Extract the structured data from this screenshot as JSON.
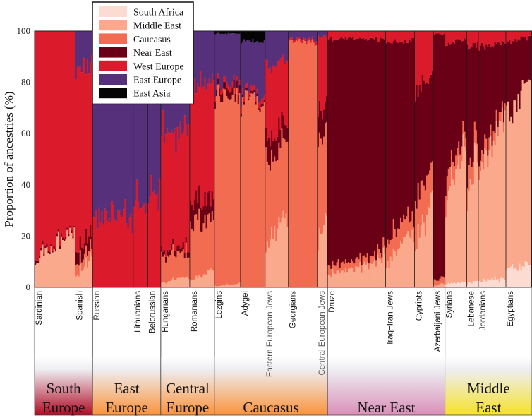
{
  "chart_data": {
    "type": "bar",
    "subtype": "stacked-admixture",
    "title": "",
    "xlabel": "",
    "ylabel": "Proportion of ancestries (%)",
    "ylim": [
      0,
      100
    ],
    "yticks": [
      0,
      20,
      40,
      60,
      80,
      100
    ],
    "grid": false,
    "legend_position": "top-left",
    "components": [
      {
        "name": "South Africa",
        "color": "#fcdcd2"
      },
      {
        "name": "Middle East",
        "color": "#fba98c"
      },
      {
        "name": "Caucasus",
        "color": "#f26c52"
      },
      {
        "name": "Near East",
        "color": "#6a0016"
      },
      {
        "name": "West Europe",
        "color": "#db1b2c"
      },
      {
        "name": "East Europe",
        "color": "#56307a"
      },
      {
        "name": "East Asia",
        "color": "#050505"
      }
    ],
    "populations": [
      {
        "name": "Sardinian",
        "region": "South Europe",
        "n": 28,
        "mean": {
          "South Africa": 0,
          "Middle East": 17,
          "Caucasus": 0,
          "Near East": 1,
          "West Europe": 82,
          "East Europe": 0,
          "East Asia": 0
        }
      },
      {
        "name": "Spanish",
        "region": "South Europe",
        "n": 12,
        "mean": {
          "South Africa": 0,
          "Middle East": 8,
          "Caucasus": 4,
          "Near East": 5,
          "West Europe": 70,
          "East Europe": 13,
          "East Asia": 0
        }
      },
      {
        "name": "Russian",
        "region": "East Europe",
        "n": 28,
        "mean": {
          "South Africa": 0,
          "Middle East": 0,
          "Caucasus": 0,
          "Near East": 0,
          "West Europe": 27,
          "East Europe": 73,
          "East Asia": 0
        }
      },
      {
        "name": "Lithuanians",
        "region": "East Europe",
        "n": 10,
        "mean": {
          "South Africa": 0,
          "Middle East": 0,
          "Caucasus": 0,
          "Near East": 0,
          "West Europe": 32,
          "East Europe": 68,
          "East Asia": 0
        }
      },
      {
        "name": "Belorussian",
        "region": "East Europe",
        "n": 9,
        "mean": {
          "South Africa": 0,
          "Middle East": 0,
          "Caucasus": 0,
          "Near East": 0,
          "West Europe": 38,
          "East Europe": 62,
          "East Asia": 0
        }
      },
      {
        "name": "Hungarians",
        "region": "Central Europe",
        "n": 20,
        "mean": {
          "South Africa": 0,
          "Middle East": 3,
          "Caucasus": 10,
          "Near East": 2,
          "West Europe": 46,
          "East Europe": 39,
          "East Asia": 0
        }
      },
      {
        "name": "Romanians",
        "region": "Central Europe",
        "n": 17,
        "mean": {
          "South Africa": 0,
          "Middle East": 5,
          "Caucasus": 22,
          "Near East": 8,
          "West Europe": 45,
          "East Europe": 20,
          "East Asia": 0
        }
      },
      {
        "name": "Lezgins",
        "region": "Caucasus",
        "n": 18,
        "mean": {
          "South Africa": 0,
          "Middle East": 1,
          "Caucasus": 74,
          "Near East": 3,
          "West Europe": 2,
          "East Europe": 19,
          "East Asia": 1
        }
      },
      {
        "name": "Adygei",
        "region": "Caucasus",
        "n": 17,
        "mean": {
          "South Africa": 0,
          "Middle East": 0,
          "Caucasus": 72,
          "Near East": 1,
          "West Europe": 2,
          "East Europe": 21,
          "East Asia": 4
        }
      },
      {
        "name": "Eastern European Jews",
        "region": "Caucasus",
        "n": 16,
        "mean": {
          "South Africa": 0,
          "Middle East": 22,
          "Caucasus": 33,
          "Near East": 8,
          "West Europe": 25,
          "East Europe": 12,
          "East Asia": 0
        }
      },
      {
        "name": "Georgians",
        "region": "Caucasus",
        "n": 20,
        "mean": {
          "South Africa": 0,
          "Middle East": 0,
          "Caucasus": 96,
          "Near East": 0,
          "West Europe": 1,
          "East Europe": 3,
          "East Asia": 0
        }
      },
      {
        "name": "Central European Jews",
        "region": "Caucasus",
        "n": 7,
        "mean": {
          "South Africa": 0,
          "Middle East": 26,
          "Caucasus": 35,
          "Near East": 10,
          "West Europe": 27,
          "East Europe": 2,
          "East Asia": 0
        }
      },
      {
        "name": "Druze",
        "region": "Near East",
        "n": 40,
        "mean": {
          "South Africa": 0,
          "Middle East": 8,
          "Caucasus": 3,
          "Near East": 86,
          "West Europe": 3,
          "East Europe": 0,
          "East Asia": 0
        }
      },
      {
        "name": "Iraq+Iran Jews",
        "region": "Near East",
        "n": 20,
        "mean": {
          "South Africa": 0,
          "Middle East": 15,
          "Caucasus": 8,
          "Near East": 73,
          "West Europe": 4,
          "East Europe": 0,
          "East Asia": 0
        }
      },
      {
        "name": "Cypriots",
        "region": "Near East",
        "n": 13,
        "mean": {
          "South Africa": 0,
          "Middle East": 26,
          "Caucasus": 16,
          "Near East": 38,
          "West Europe": 20,
          "East Europe": 0,
          "East Asia": 0
        }
      },
      {
        "name": "Azerbaijani Jews",
        "region": "Near East",
        "n": 8,
        "mean": {
          "South Africa": 0,
          "Middle East": 1,
          "Caucasus": 2,
          "Near East": 96,
          "West Europe": 1,
          "East Europe": 0,
          "East Asia": 0
        }
      },
      {
        "name": "Syrians",
        "region": "Middle East",
        "n": 15,
        "mean": {
          "South Africa": 2,
          "Middle East": 44,
          "Caucasus": 7,
          "Near East": 43,
          "West Europe": 4,
          "East Europe": 0,
          "East Asia": 0
        }
      },
      {
        "name": "Lebanese",
        "region": "Middle East",
        "n": 8,
        "mean": {
          "South Africa": 2,
          "Middle East": 42,
          "Caucasus": 8,
          "Near East": 42,
          "West Europe": 6,
          "East Europe": 0,
          "East Asia": 0
        }
      },
      {
        "name": "Jordanians",
        "region": "Middle East",
        "n": 19,
        "mean": {
          "South Africa": 3,
          "Middle East": 55,
          "Caucasus": 4,
          "Near East": 33,
          "West Europe": 5,
          "East Europe": 0,
          "East Asia": 0
        }
      },
      {
        "name": "Egyptians",
        "region": "Middle East",
        "n": 18,
        "mean": {
          "South Africa": 8,
          "Middle East": 68,
          "Caucasus": 0,
          "Near East": 21,
          "West Europe": 3,
          "East Europe": 0,
          "East Asia": 0
        }
      }
    ],
    "regions": [
      {
        "name": "South Europe",
        "lines": [
          "South",
          "Europe"
        ],
        "color": "#b00a24"
      },
      {
        "name": "East Europe",
        "lines": [
          "East",
          "Europe"
        ],
        "color": "#fb923a"
      },
      {
        "name": "Central Europe",
        "lines": [
          "Central",
          "Europe"
        ],
        "color": "#fb923a"
      },
      {
        "name": "Caucasus",
        "lines": [
          "Caucasus"
        ],
        "color": "#fb923a"
      },
      {
        "name": "Near East",
        "lines": [
          "Near East"
        ],
        "color": "#d98fb8"
      },
      {
        "name": "Middle East",
        "lines": [
          "Middle",
          "East"
        ],
        "color": "#f6e12a"
      }
    ]
  }
}
